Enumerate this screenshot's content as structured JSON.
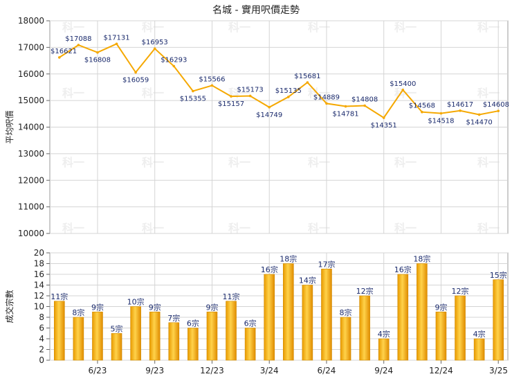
{
  "title": "名城 - 實用呎價走勢",
  "chart_data": [
    {
      "type": "line",
      "ylabel": "平均呎價",
      "ylim": [
        10000,
        18000
      ],
      "yticks": [
        10000,
        11000,
        12000,
        13000,
        14000,
        15000,
        16000,
        17000,
        18000
      ],
      "value_prefix": "$",
      "color": "#f5a800",
      "grid": true,
      "values": [
        16621,
        17088,
        16808,
        17131,
        16059,
        16953,
        16293,
        15355,
        15566,
        15157,
        15173,
        14749,
        15135,
        15681,
        14889,
        14781,
        14808,
        14351,
        15400,
        14568,
        14518,
        14617,
        14470,
        14608
      ]
    },
    {
      "type": "bar",
      "ylabel": "成交宗數",
      "ylim": [
        0,
        20
      ],
      "yticks": [
        0,
        2,
        4,
        6,
        8,
        10,
        12,
        14,
        16,
        18,
        20
      ],
      "value_suffix": "宗",
      "color": "#f5a800",
      "grid": true,
      "x_tick_labels": [
        {
          "index": 2,
          "label": "6/23"
        },
        {
          "index": 5,
          "label": "9/23"
        },
        {
          "index": 8,
          "label": "12/23"
        },
        {
          "index": 11,
          "label": "3/24"
        },
        {
          "index": 14,
          "label": "6/24"
        },
        {
          "index": 17,
          "label": "9/24"
        },
        {
          "index": 20,
          "label": "12/24"
        },
        {
          "index": 23,
          "label": "3/25"
        }
      ],
      "values": [
        11,
        8,
        9,
        5,
        10,
        9,
        7,
        6,
        9,
        11,
        6,
        16,
        18,
        14,
        17,
        8,
        12,
        4,
        16,
        18,
        9,
        12,
        4,
        15
      ]
    }
  ],
  "watermark": "科一"
}
